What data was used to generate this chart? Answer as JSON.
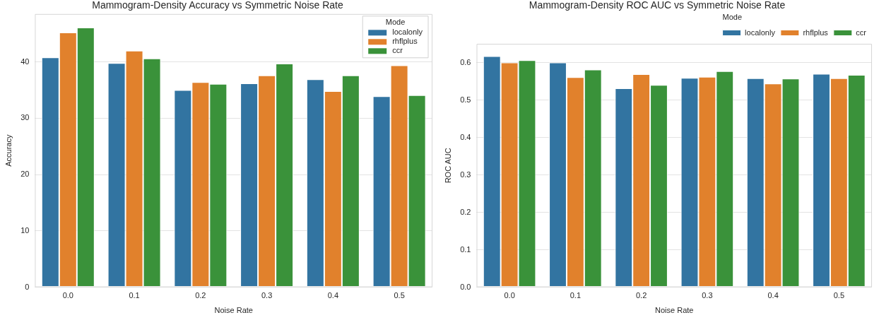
{
  "chart_data": [
    {
      "type": "bar",
      "title": "Mammogram-Density Accuracy vs Symmetric Noise Rate",
      "xlabel": "Noise Rate",
      "ylabel": "Accuracy",
      "legend_title": "Mode",
      "categories": [
        "0.0",
        "0.1",
        "0.2",
        "0.3",
        "0.4",
        "0.5"
      ],
      "series": [
        {
          "name": "localonly",
          "color": "#3274a1",
          "values": [
            40.8,
            39.8,
            35.0,
            36.2,
            36.9,
            33.9
          ]
        },
        {
          "name": "rhflplus",
          "color": "#e1812c",
          "values": [
            45.2,
            42.0,
            36.4,
            37.6,
            34.8,
            39.4
          ]
        },
        {
          "name": "ccr",
          "color": "#3a923a",
          "values": [
            46.1,
            40.6,
            36.1,
            39.7,
            37.6,
            34.1
          ]
        }
      ],
      "ylim": [
        0,
        48.5
      ],
      "yticks": [
        0,
        10,
        20,
        30,
        40
      ],
      "grid": "y",
      "legend": "top right"
    },
    {
      "type": "bar",
      "title": "Mammogram-Density ROC AUC vs Symmetric Noise Rate",
      "xlabel": "Noise Rate",
      "ylabel": "ROC AUC",
      "legend_title": "Mode",
      "categories": [
        "0.0",
        "0.1",
        "0.2",
        "0.3",
        "0.4",
        "0.5"
      ],
      "series": [
        {
          "name": "localonly",
          "color": "#3274a1",
          "values": [
            0.617,
            0.6,
            0.531,
            0.559,
            0.558,
            0.57
          ]
        },
        {
          "name": "rhflplus",
          "color": "#e1812c",
          "values": [
            0.6,
            0.561,
            0.569,
            0.562,
            0.544,
            0.558
          ]
        },
        {
          "name": "ccr",
          "color": "#3a923a",
          "values": [
            0.606,
            0.581,
            0.54,
            0.577,
            0.557,
            0.567
          ]
        }
      ],
      "ylim": [
        0,
        0.65
      ],
      "yticks": [
        {
          "value": 0,
          "label": "0.0"
        },
        0.1,
        0.2,
        0.3,
        0.4,
        0.5,
        0.6
      ],
      "grid": "y",
      "legend": "top"
    }
  ]
}
